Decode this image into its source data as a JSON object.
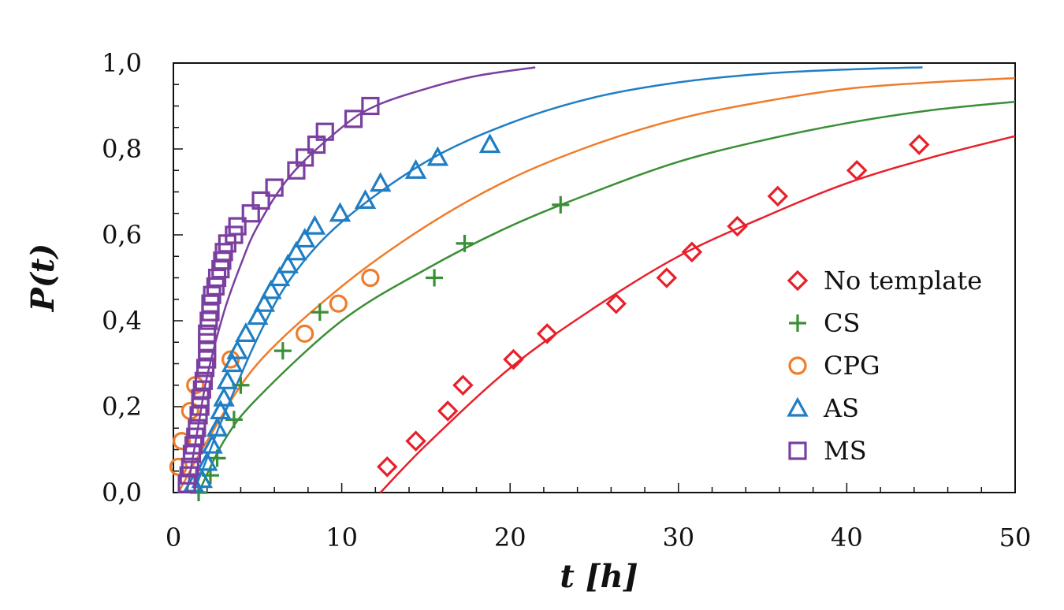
{
  "chart_data": {
    "type": "scatter",
    "xlabel": "t [h]",
    "ylabel": "P(t)",
    "xlim": [
      0,
      50
    ],
    "ylim": [
      0,
      1
    ],
    "x_ticks": [
      0,
      10,
      20,
      30,
      40,
      50
    ],
    "x_tick_labels": [
      "0",
      "10",
      "20",
      "30",
      "40",
      "50"
    ],
    "y_ticks": [
      0,
      0.2,
      0.4,
      0.6,
      0.8,
      1.0
    ],
    "y_tick_labels": [
      "0,0",
      "0,2",
      "0,4",
      "0,6",
      "0,8",
      "1,0"
    ],
    "grid": false,
    "legend_position": "right",
    "series": [
      {
        "name": "No template",
        "marker": "diamond",
        "color": "#e8202a",
        "points": [
          [
            12.7,
            0.06
          ],
          [
            14.4,
            0.12
          ],
          [
            16.3,
            0.19
          ],
          [
            17.2,
            0.25
          ],
          [
            20.2,
            0.31
          ],
          [
            22.2,
            0.37
          ],
          [
            26.3,
            0.44
          ],
          [
            29.3,
            0.5
          ],
          [
            30.8,
            0.56
          ],
          [
            33.5,
            0.62
          ],
          [
            35.9,
            0.69
          ],
          [
            40.6,
            0.75
          ],
          [
            44.3,
            0.81
          ]
        ],
        "fit": [
          [
            12.3,
            0.0
          ],
          [
            15,
            0.11
          ],
          [
            20,
            0.29
          ],
          [
            25,
            0.43
          ],
          [
            30,
            0.55
          ],
          [
            35,
            0.64
          ],
          [
            40,
            0.72
          ],
          [
            45,
            0.78
          ],
          [
            50,
            0.83
          ]
        ]
      },
      {
        "name": "CS",
        "marker": "plus",
        "color": "#3a8f35",
        "points": [
          [
            1.5,
            0.0
          ],
          [
            2.2,
            0.04
          ],
          [
            2.6,
            0.08
          ],
          [
            3.6,
            0.17
          ],
          [
            4.0,
            0.25
          ],
          [
            6.5,
            0.33
          ],
          [
            8.7,
            0.42
          ],
          [
            15.5,
            0.5
          ],
          [
            17.3,
            0.58
          ],
          [
            23.0,
            0.67
          ]
        ],
        "fit": [
          [
            1.5,
            0.0
          ],
          [
            3,
            0.12
          ],
          [
            5,
            0.22
          ],
          [
            10,
            0.4
          ],
          [
            15,
            0.52
          ],
          [
            20,
            0.62
          ],
          [
            25,
            0.7
          ],
          [
            30,
            0.77
          ],
          [
            35,
            0.82
          ],
          [
            40,
            0.86
          ],
          [
            45,
            0.89
          ],
          [
            50,
            0.91
          ]
        ]
      },
      {
        "name": "CPG",
        "marker": "circle",
        "color": "#f07c2a",
        "points": [
          [
            0.3,
            0.06
          ],
          [
            0.5,
            0.12
          ],
          [
            1.0,
            0.19
          ],
          [
            1.3,
            0.25
          ],
          [
            3.4,
            0.31
          ],
          [
            7.8,
            0.37
          ],
          [
            9.8,
            0.44
          ],
          [
            11.7,
            0.5
          ]
        ],
        "fit": [
          [
            0.3,
            0.0
          ],
          [
            2,
            0.12
          ],
          [
            5,
            0.3
          ],
          [
            10,
            0.48
          ],
          [
            15,
            0.62
          ],
          [
            20,
            0.73
          ],
          [
            25,
            0.81
          ],
          [
            30,
            0.87
          ],
          [
            35,
            0.91
          ],
          [
            40,
            0.94
          ],
          [
            45,
            0.955
          ],
          [
            50,
            0.965
          ]
        ]
      },
      {
        "name": "AS",
        "marker": "triangle",
        "color": "#1f7ec4",
        "points": [
          [
            1.2,
            0.02
          ],
          [
            1.7,
            0.03
          ],
          [
            2.0,
            0.07
          ],
          [
            2.3,
            0.11
          ],
          [
            2.6,
            0.15
          ],
          [
            2.8,
            0.19
          ],
          [
            3.0,
            0.22
          ],
          [
            3.2,
            0.26
          ],
          [
            3.5,
            0.3
          ],
          [
            3.8,
            0.33
          ],
          [
            4.3,
            0.37
          ],
          [
            5.0,
            0.41
          ],
          [
            5.4,
            0.44
          ],
          [
            5.8,
            0.47
          ],
          [
            6.3,
            0.5
          ],
          [
            6.8,
            0.53
          ],
          [
            7.3,
            0.56
          ],
          [
            7.8,
            0.59
          ],
          [
            8.4,
            0.62
          ],
          [
            9.9,
            0.65
          ],
          [
            11.4,
            0.68
          ],
          [
            12.3,
            0.72
          ],
          [
            14.4,
            0.75
          ],
          [
            15.7,
            0.78
          ],
          [
            18.8,
            0.81
          ]
        ],
        "fit": [
          [
            1.2,
            0.0
          ],
          [
            2,
            0.08
          ],
          [
            3,
            0.18
          ],
          [
            5,
            0.36
          ],
          [
            7,
            0.5
          ],
          [
            10,
            0.63
          ],
          [
            15,
            0.77
          ],
          [
            20,
            0.86
          ],
          [
            25,
            0.92
          ],
          [
            30,
            0.955
          ],
          [
            35,
            0.975
          ],
          [
            40,
            0.985
          ],
          [
            44.5,
            0.99
          ]
        ]
      },
      {
        "name": "MS",
        "marker": "square",
        "color": "#7b3fa0",
        "points": [
          [
            0.8,
            0.02
          ],
          [
            0.9,
            0.04
          ],
          [
            1.0,
            0.06
          ],
          [
            1.1,
            0.09
          ],
          [
            1.2,
            0.11
          ],
          [
            1.3,
            0.13
          ],
          [
            1.4,
            0.15
          ],
          [
            1.5,
            0.18
          ],
          [
            1.6,
            0.2
          ],
          [
            1.6,
            0.22
          ],
          [
            1.7,
            0.24
          ],
          [
            1.8,
            0.26
          ],
          [
            1.9,
            0.29
          ],
          [
            2.0,
            0.31
          ],
          [
            2.0,
            0.33
          ],
          [
            2.0,
            0.35
          ],
          [
            2.0,
            0.37
          ],
          [
            2.1,
            0.4
          ],
          [
            2.2,
            0.42
          ],
          [
            2.2,
            0.44
          ],
          [
            2.3,
            0.46
          ],
          [
            2.5,
            0.48
          ],
          [
            2.6,
            0.5
          ],
          [
            2.8,
            0.52
          ],
          [
            2.9,
            0.54
          ],
          [
            3.0,
            0.56
          ],
          [
            3.2,
            0.58
          ],
          [
            3.6,
            0.6
          ],
          [
            3.8,
            0.62
          ],
          [
            4.6,
            0.65
          ],
          [
            5.2,
            0.68
          ],
          [
            6.0,
            0.71
          ],
          [
            7.3,
            0.75
          ],
          [
            7.8,
            0.78
          ],
          [
            8.5,
            0.81
          ],
          [
            9.0,
            0.84
          ],
          [
            10.7,
            0.87
          ],
          [
            11.7,
            0.9
          ]
        ],
        "fit": [
          [
            0.8,
            0.0
          ],
          [
            1.5,
            0.16
          ],
          [
            2,
            0.27
          ],
          [
            3,
            0.42
          ],
          [
            4,
            0.53
          ],
          [
            5,
            0.62
          ],
          [
            7,
            0.74
          ],
          [
            10,
            0.85
          ],
          [
            12,
            0.9
          ],
          [
            15,
            0.94
          ],
          [
            18,
            0.97
          ],
          [
            21.5,
            0.99
          ]
        ]
      }
    ]
  }
}
